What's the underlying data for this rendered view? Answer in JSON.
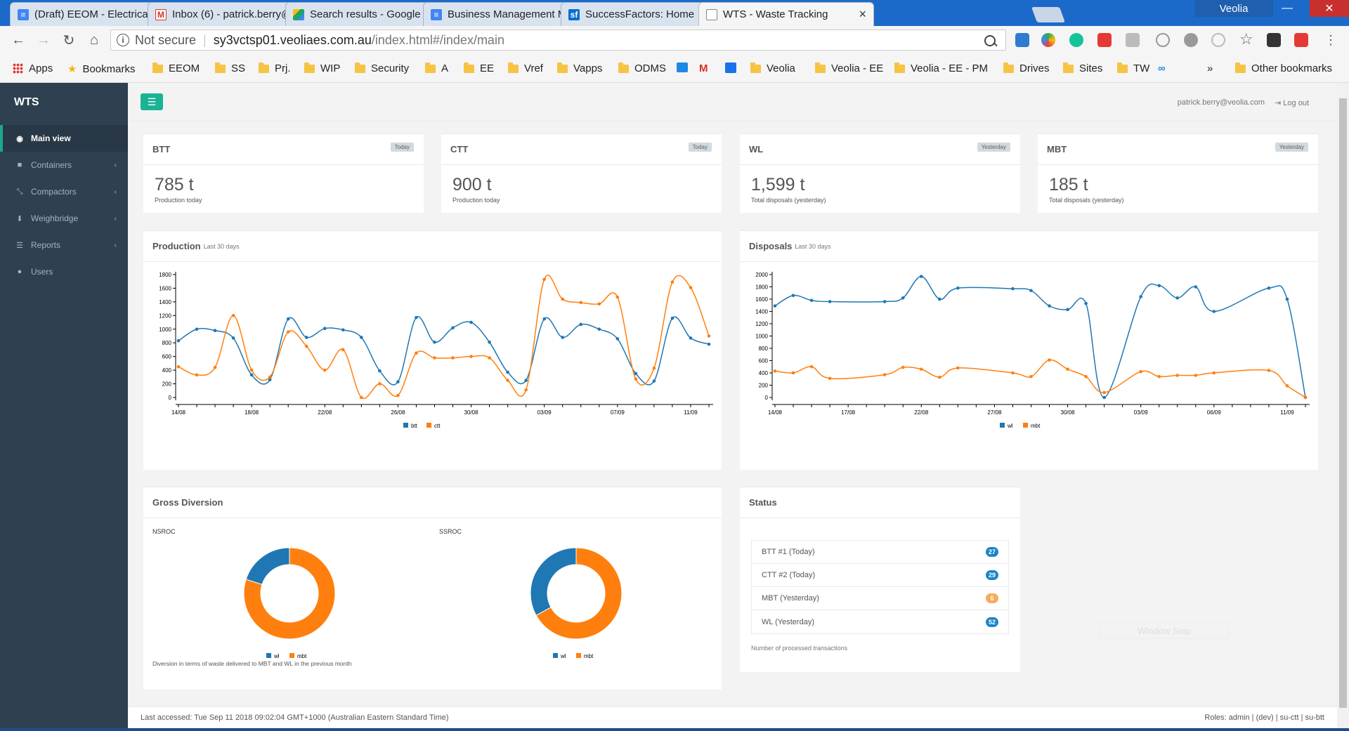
{
  "browser": {
    "tabs": [
      {
        "title": "(Draft) EEOM - Electrical E",
        "icon": "doc-icon",
        "color": "#4285f4"
      },
      {
        "title": "Inbox (6) - patrick.berry@",
        "icon": "gmail-icon",
        "color": "#d93025"
      },
      {
        "title": "Search results - Google D",
        "icon": "drive-icon",
        "color": "#1fa463"
      },
      {
        "title": "Business Management M",
        "icon": "doc-icon",
        "color": "#4285f4"
      },
      {
        "title": "SuccessFactors: Home",
        "icon": "sf-icon",
        "color": "#0a6ed1"
      },
      {
        "title": "WTS - Waste Tracking",
        "icon": "page-icon",
        "color": "#888888"
      }
    ],
    "profile": "Veolia",
    "not_secure": "Not secure",
    "url_host": "sy3vctsp01.veoliaes.com.au",
    "url_path": "/index.html#/index/main",
    "bookmarks": [
      "Apps",
      "Bookmarks",
      "EEOM",
      "SS",
      "Prj.",
      "WIP",
      "Security",
      "A",
      "EE",
      "Vref",
      "Vapps",
      "ODMS",
      "Veolia",
      "Veolia - EE",
      "Veolia - EE - PM",
      "Drives",
      "Sites",
      "TW"
    ],
    "other_bookmarks": "Other bookmarks",
    "overflow": "»"
  },
  "app": {
    "brand": "WTS",
    "nav": [
      {
        "label": "Main view",
        "icon": "dashboard-icon",
        "glyph": "◉",
        "active": true
      },
      {
        "label": "Containers",
        "icon": "container-icon",
        "glyph": "■",
        "active": false
      },
      {
        "label": "Compactors",
        "icon": "compress-icon",
        "glyph": "⤡",
        "active": false
      },
      {
        "label": "Weighbridge",
        "icon": "download-icon",
        "glyph": "⬇",
        "active": false
      },
      {
        "label": "Reports",
        "icon": "list-icon",
        "glyph": "☰",
        "active": false
      },
      {
        "label": "Users",
        "icon": "users-icon",
        "glyph": "👥",
        "active": false
      }
    ],
    "user_email": "patrick.berry@veolia.com",
    "logout": "Log out",
    "stats": [
      {
        "title": "BTT",
        "badge": "Today",
        "value": "785 t",
        "sub": "Production today"
      },
      {
        "title": "CTT",
        "badge": "Today",
        "value": "900 t",
        "sub": "Production today"
      },
      {
        "title": "WL",
        "badge": "Yesterday",
        "value": "1,599 t",
        "sub": "Total disposals (yesterday)"
      },
      {
        "title": "MBT",
        "badge": "Yesterday",
        "value": "185 t",
        "sub": "Total disposals (yesterday)"
      }
    ],
    "production_title": "Production",
    "production_sub": "Last 30 days",
    "disposals_title": "Disposals",
    "disposals_sub": "Last 30 days",
    "diversion_title": "Gross Diversion",
    "diversion_note": "Diversion in terms of waste delivered to MBT and WL in the previous month",
    "status_title": "Status",
    "status_items": [
      {
        "label": "BTT #1 (Today)",
        "count": "27",
        "color": "#1c84c6"
      },
      {
        "label": "CTT #2 (Today)",
        "count": "29",
        "color": "#1c84c6"
      },
      {
        "label": "MBT (Yesterday)",
        "count": "6",
        "color": "#f8ac59"
      },
      {
        "label": "WL (Yesterday)",
        "count": "52",
        "color": "#1c84c6"
      }
    ],
    "status_note": "Number of processed transactions",
    "footer_left": "Last accessed: Tue Sep 11 2018 09:02:04 GMT+1000 (Australian Eastern Standard Time)",
    "footer_right": "Roles: admin | (dev) | su-ctt | su-btt",
    "window_snip": "Window Snip"
  },
  "colors": {
    "blue": "#1f77b4",
    "orange": "#ff7f0e",
    "accent": "#1ab394"
  },
  "chart_data": [
    {
      "type": "line",
      "title": "Production",
      "subtitle": "Last 30 days",
      "x_ticks": [
        "14/08",
        "18/08",
        "22/08",
        "26/08",
        "30/08",
        "03/09",
        "07/09",
        "11/09"
      ],
      "x_range": [
        0,
        29
      ],
      "ylim": [
        0,
        1800
      ],
      "y_ticks": [
        0,
        200,
        400,
        600,
        800,
        1000,
        1200,
        1400,
        1600,
        1800
      ],
      "legend": "bottom",
      "series": [
        {
          "name": "btt",
          "color": "#1f77b4",
          "points": [
            [
              0,
              830
            ],
            [
              1,
              1000
            ],
            [
              2,
              980
            ],
            [
              3,
              870
            ],
            [
              4,
              330
            ],
            [
              5,
              260
            ],
            [
              6,
              1150
            ],
            [
              7,
              880
            ],
            [
              8,
              1010
            ],
            [
              9,
              990
            ],
            [
              10,
              880
            ],
            [
              11,
              390
            ],
            [
              12,
              230
            ],
            [
              13,
              1170
            ],
            [
              14,
              810
            ],
            [
              15,
              1020
            ],
            [
              16,
              1100
            ],
            [
              17,
              810
            ],
            [
              18,
              370
            ],
            [
              19,
              250
            ],
            [
              20,
              1150
            ],
            [
              21,
              880
            ],
            [
              22,
              1070
            ],
            [
              23,
              1000
            ],
            [
              24,
              860
            ],
            [
              25,
              350
            ],
            [
              26,
              240
            ],
            [
              27,
              1160
            ],
            [
              28,
              870
            ],
            [
              29,
              780
            ]
          ]
        },
        {
          "name": "ctt",
          "color": "#ff7f0e",
          "points": [
            [
              0,
              450
            ],
            [
              1,
              330
            ],
            [
              2,
              440
            ],
            [
              3,
              1200
            ],
            [
              4,
              400
            ],
            [
              5,
              300
            ],
            [
              6,
              960
            ],
            [
              7,
              750
            ],
            [
              8,
              400
            ],
            [
              9,
              700
            ],
            [
              10,
              0
            ],
            [
              11,
              200
            ],
            [
              12,
              30
            ],
            [
              13,
              650
            ],
            [
              14,
              580
            ],
            [
              15,
              580
            ],
            [
              16,
              600
            ],
            [
              17,
              580
            ],
            [
              18,
              250
            ],
            [
              19,
              110
            ],
            [
              20,
              1730
            ],
            [
              21,
              1440
            ],
            [
              22,
              1390
            ],
            [
              23,
              1370
            ],
            [
              24,
              1470
            ],
            [
              25,
              270
            ],
            [
              26,
              430
            ],
            [
              27,
              1690
            ],
            [
              28,
              1610
            ],
            [
              29,
              900
            ]
          ]
        }
      ]
    },
    {
      "type": "line",
      "title": "Disposals",
      "subtitle": "Last 30 days",
      "x_ticks": [
        "14/08",
        "17/08",
        "22/08",
        "27/08",
        "30/08",
        "03/09",
        "06/09",
        "11/09"
      ],
      "x_range": [
        0,
        29
      ],
      "ylim": [
        0,
        2000
      ],
      "y_ticks": [
        0,
        200,
        400,
        600,
        800,
        1000,
        1200,
        1400,
        1600,
        1800,
        2000
      ],
      "legend": "bottom",
      "series": [
        {
          "name": "wl",
          "color": "#1f77b4",
          "points": [
            [
              0,
              1490
            ],
            [
              1,
              1660
            ],
            [
              2,
              1580
            ],
            [
              3,
              1560
            ],
            [
              6,
              1560
            ],
            [
              7,
              1620
            ],
            [
              8,
              1970
            ],
            [
              9,
              1600
            ],
            [
              10,
              1780
            ],
            [
              13,
              1770
            ],
            [
              14,
              1740
            ],
            [
              15,
              1490
            ],
            [
              16,
              1430
            ],
            [
              17,
              1530
            ],
            [
              18,
              0
            ],
            [
              20,
              1640
            ],
            [
              21,
              1820
            ],
            [
              22,
              1620
            ],
            [
              23,
              1800
            ],
            [
              24,
              1400
            ],
            [
              27,
              1780
            ],
            [
              28,
              1600
            ],
            [
              29,
              0
            ]
          ]
        },
        {
          "name": "mbt",
          "color": "#ff7f0e",
          "points": [
            [
              0,
              430
            ],
            [
              1,
              400
            ],
            [
              2,
              500
            ],
            [
              3,
              310
            ],
            [
              6,
              370
            ],
            [
              7,
              490
            ],
            [
              8,
              460
            ],
            [
              9,
              330
            ],
            [
              10,
              480
            ],
            [
              13,
              400
            ],
            [
              14,
              340
            ],
            [
              15,
              610
            ],
            [
              16,
              460
            ],
            [
              17,
              340
            ],
            [
              18,
              80
            ],
            [
              20,
              420
            ],
            [
              21,
              340
            ],
            [
              22,
              360
            ],
            [
              23,
              360
            ],
            [
              24,
              400
            ],
            [
              27,
              440
            ],
            [
              28,
              190
            ],
            [
              29,
              0
            ]
          ]
        }
      ]
    },
    {
      "type": "pie",
      "title": "NSROC",
      "legend": "bottom",
      "series": [
        {
          "name": "wl",
          "color": "#1f77b4",
          "value": 20
        },
        {
          "name": "mbt",
          "color": "#ff7f0e",
          "value": 80
        }
      ]
    },
    {
      "type": "pie",
      "title": "SSROC",
      "legend": "bottom",
      "series": [
        {
          "name": "wl",
          "color": "#1f77b4",
          "value": 33
        },
        {
          "name": "mbt",
          "color": "#ff7f0e",
          "value": 67
        }
      ]
    }
  ]
}
